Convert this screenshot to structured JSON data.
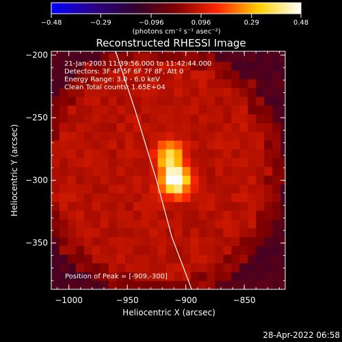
{
  "chart_data": {
    "type": "heatmap",
    "title": "Reconstructed RHESSI Image",
    "xlabel": "Heliocentric X (arcsec)",
    "ylabel": "Heliocentric Y (arcsec)",
    "xlim": [
      -1015,
      -815
    ],
    "ylim": [
      -387,
      -197
    ],
    "x_ticks": [
      -1000,
      -950,
      -900,
      -850
    ],
    "x_tick_labels": [
      "−1000",
      "−950",
      "−900",
      "−850"
    ],
    "y_ticks": [
      -200,
      -250,
      -300,
      -350
    ],
    "y_tick_labels": [
      "−200",
      "−250",
      "−300",
      "−350"
    ],
    "colorbar": {
      "range": [
        -0.48,
        0.48
      ],
      "ticks": [
        -0.48,
        -0.29,
        -0.096,
        0.096,
        0.29,
        0.48
      ],
      "tick_labels": [
        "−0.48",
        "−0.29",
        "−0.096",
        "0.096",
        "0.29",
        "0.48"
      ],
      "unit_label": "(photons cm⁻² s⁻¹ asec⁻²)",
      "colors": [
        "#0000ff",
        "#2a0088",
        "#300030",
        "#800000",
        "#ff2800",
        "#ffd000",
        "#ffffff"
      ]
    },
    "annotations": [
      "21-Jan-2003 11:39:56.000 to 11:42:44.000",
      "Detectors: 3F 4F 5F 6F 7F 8F, Att 0",
      "Energy Range: 3.0 - 6.0 keV",
      "Clean     Total counts: 1.65E+04"
    ],
    "peak_label": "Position of Peak = [-909,-300]",
    "peaks": [
      {
        "x": -909,
        "y": -300,
        "value": 0.48
      },
      {
        "x": -914,
        "y": -280,
        "value": 0.3
      }
    ],
    "limb_curve": [
      {
        "x": -960,
        "y": -197
      },
      {
        "x": -943,
        "y": -245
      },
      {
        "x": -925,
        "y": -300
      },
      {
        "x": -912,
        "y": -345
      },
      {
        "x": -895,
        "y": -387
      }
    ],
    "grid": false
  },
  "footer": {
    "timestamp": "28-Apr-2022 06:58"
  }
}
